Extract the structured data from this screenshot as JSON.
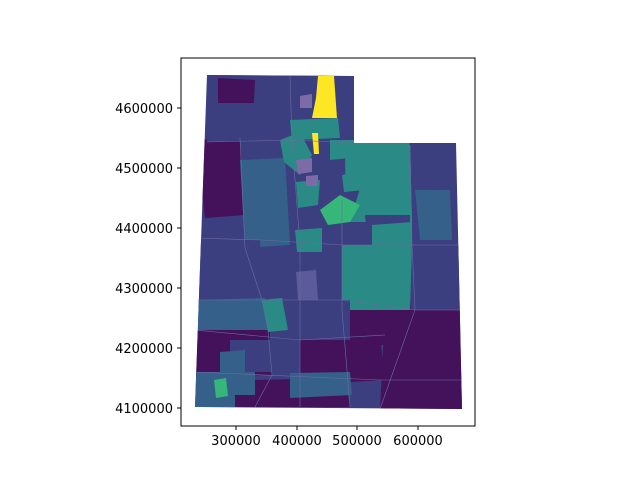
{
  "figure": {
    "background": "#ffffff",
    "frame_color": "#000000"
  },
  "axes": {
    "x_ticks": [
      "300000",
      "400000",
      "500000",
      "600000"
    ],
    "y_ticks": [
      "4100000",
      "4200000",
      "4300000",
      "4400000",
      "4500000",
      "4600000"
    ],
    "x_range": [
      220000,
      690000
    ],
    "y_range": [
      4068000,
      4680000
    ]
  },
  "map": {
    "colormap": "viridis",
    "colors": {
      "dark_purple": "#44125a",
      "indigo": "#3b3f80",
      "blue": "#34608a",
      "teal": "#2a8a86",
      "green": "#35b779",
      "yellow": "#fde725"
    }
  }
}
